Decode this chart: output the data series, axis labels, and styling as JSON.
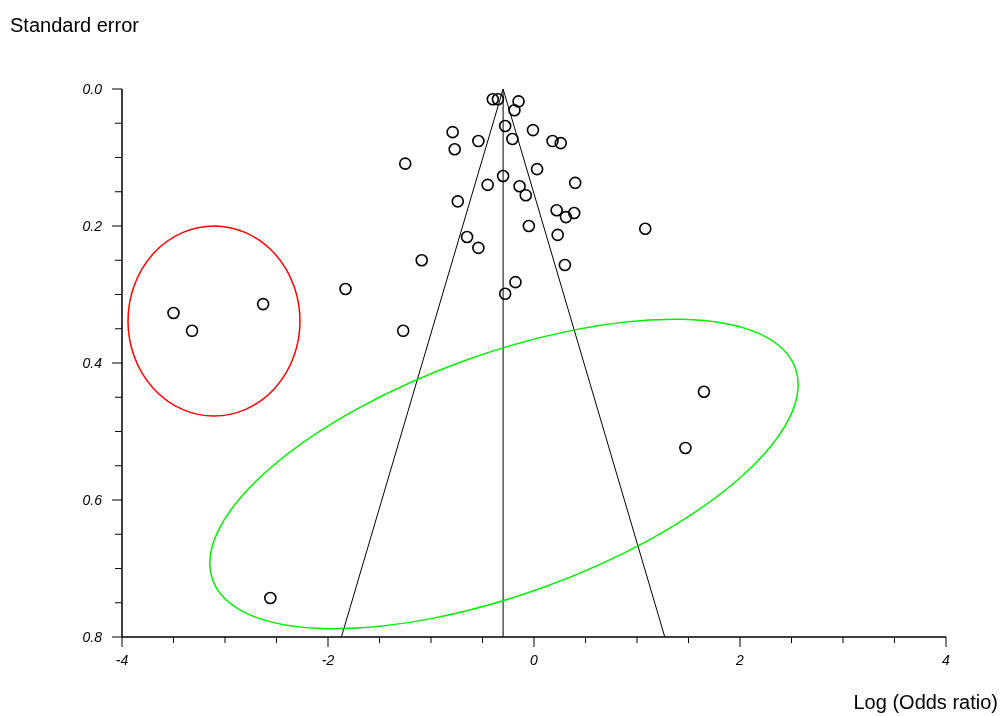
{
  "chart_data": {
    "type": "scatter",
    "xlabel": "Log (Odds ratio)",
    "ylabel": "Standard error",
    "xlim": [
      -4,
      4
    ],
    "ylim": [
      0.8,
      0
    ],
    "xticks": [
      -4,
      {
        "value": -3.5,
        "label": null
      },
      {
        "value": -3,
        "label": null
      },
      {
        "value": -2.5,
        "label": null
      },
      -2,
      {
        "value": -1.5,
        "label": null
      },
      {
        "value": -1,
        "label": null
      },
      {
        "value": -0.5,
        "label": null
      },
      0,
      {
        "value": 0.5,
        "label": null
      },
      {
        "value": 1,
        "label": null
      },
      {
        "value": 1.5,
        "label": null
      },
      2,
      {
        "value": 2.5,
        "label": null
      },
      {
        "value": 3,
        "label": null
      },
      {
        "value": 3.5,
        "label": null
      },
      4
    ],
    "yticks": [
      {
        "value": 0,
        "label": "0.0"
      },
      {
        "value": 0.05,
        "label": null
      },
      {
        "value": 0.1,
        "label": null
      },
      {
        "value": 0.15,
        "label": null
      },
      {
        "value": 0.2,
        "label": "0.2"
      },
      {
        "value": 0.25,
        "label": null
      },
      {
        "value": 0.3,
        "label": null
      },
      {
        "value": 0.35,
        "label": null
      },
      {
        "value": 0.4,
        "label": "0.4"
      },
      {
        "value": 0.45,
        "label": null
      },
      {
        "value": 0.5,
        "label": null
      },
      {
        "value": 0.55,
        "label": null
      },
      {
        "value": 0.6,
        "label": "0.6"
      },
      {
        "value": 0.65,
        "label": null
      },
      {
        "value": 0.7,
        "label": null
      },
      {
        "value": 0.75,
        "label": null
      },
      {
        "value": 0.8,
        "label": "0.8"
      }
    ],
    "grid": false,
    "ref_lines": [
      {
        "axis": "x",
        "value": -0.3,
        "color": "#000000"
      }
    ],
    "series": [
      {
        "color": "#000000",
        "marker": "circle",
        "x": [
          -0.4,
          -0.35,
          -0.15,
          -0.19,
          -0.28,
          -0.79,
          -0.01,
          -0.54,
          -0.21,
          0.18,
          0.26,
          -0.77,
          -1.25,
          0.03,
          -0.3,
          -0.45,
          -0.14,
          0.4,
          -0.08,
          -0.74,
          0.22,
          0.39,
          0.31,
          -0.05,
          1.08,
          -0.65,
          0.23,
          -0.54,
          -1.09,
          0.3,
          -0.18,
          -0.28,
          -1.83,
          -2.63,
          -3.5,
          -3.32,
          -1.27,
          1.65,
          1.47,
          -2.56
        ],
        "values": [
          0.015,
          0.015,
          0.018,
          0.031,
          0.054,
          0.063,
          0.06,
          0.076,
          0.073,
          0.076,
          0.079,
          0.088,
          0.109,
          0.117,
          0.127,
          0.14,
          0.142,
          0.137,
          0.155,
          0.164,
          0.177,
          0.181,
          0.187,
          0.2,
          0.204,
          0.216,
          0.213,
          0.232,
          0.25,
          0.257,
          0.282,
          0.299,
          0.292,
          0.314,
          0.327,
          0.353,
          0.353,
          0.442,
          0.524,
          0.743
        ]
      },
      {
        "type": "line",
        "color": "#000000",
        "marker": "none",
        "x": [
          -1.87,
          -0.3,
          1.27
        ],
        "values": [
          0.8,
          0,
          0.8
        ]
      }
    ]
  }
}
